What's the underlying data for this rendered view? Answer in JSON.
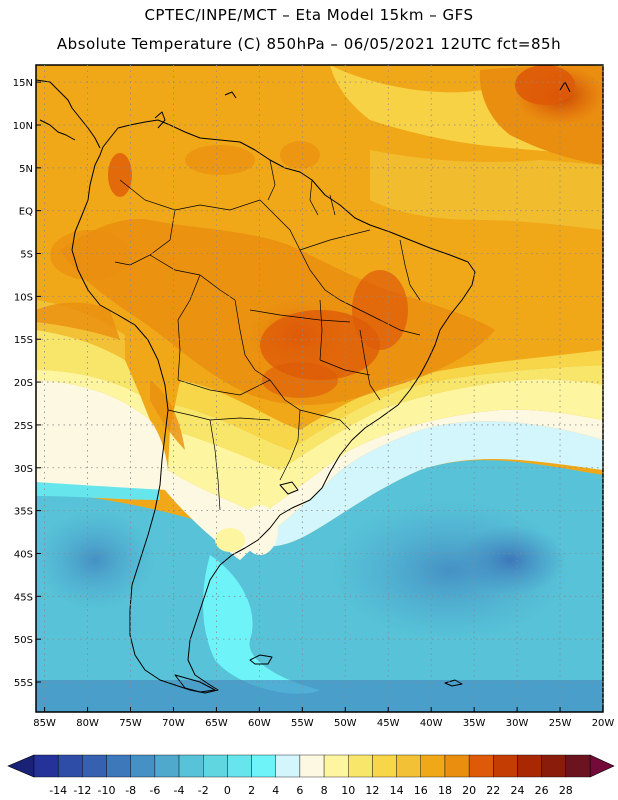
{
  "header": {
    "line1": "CPTEC/INPE/MCT –  Eta Model 15km – GFS",
    "line2": "Absolute Temperature (C) 850hPa – 06/05/2021 12UTC fct=85h"
  },
  "map": {
    "lat_labels": [
      "15N",
      "10N",
      "5N",
      "EQ",
      "5S",
      "10S",
      "15S",
      "20S",
      "25S",
      "30S",
      "35S",
      "40S",
      "45S",
      "50S",
      "55S"
    ],
    "lat_values": [
      15,
      10,
      5,
      0,
      -5,
      -10,
      -15,
      -20,
      -25,
      -30,
      -35,
      -40,
      -45,
      -50,
      -55
    ],
    "lon_labels": [
      "85W",
      "80W",
      "75W",
      "70W",
      "65W",
      "60W",
      "55W",
      "50W",
      "45W",
      "40W",
      "35W",
      "30W",
      "25W",
      "20W"
    ],
    "lon_values": [
      -85,
      -80,
      -75,
      -70,
      -65,
      -60,
      -55,
      -50,
      -45,
      -40,
      -35,
      -30,
      -25,
      -20
    ],
    "lat_range": [
      -58.5,
      17
    ],
    "lon_range": [
      -86,
      -20
    ]
  },
  "colorbar": {
    "labels": [
      "-14",
      "-12",
      "-10",
      "-8",
      "-6",
      "-4",
      "-2",
      "0",
      "2",
      "4",
      "6",
      "8",
      "10",
      "12",
      "14",
      "16",
      "18",
      "20",
      "22",
      "24",
      "26",
      "28"
    ],
    "colors": [
      "#24329a",
      "#2d4da6",
      "#3561b0",
      "#3d78bb",
      "#4590c4",
      "#4ea9cd",
      "#57c2d8",
      "#5fd6e0",
      "#66e6ec",
      "#6ef4f8",
      "#d2f6fc",
      "#fdf8e1",
      "#fdf5a0",
      "#f7e66a",
      "#f7d64a",
      "#f2c136",
      "#f0a818",
      "#ea8e10",
      "#de5a08",
      "#c43e04",
      "#a82804",
      "#8a1c0c",
      "#6b1420"
    ],
    "low_arrow_color": "#1a2278",
    "high_arrow_color": "#740a3a"
  }
}
